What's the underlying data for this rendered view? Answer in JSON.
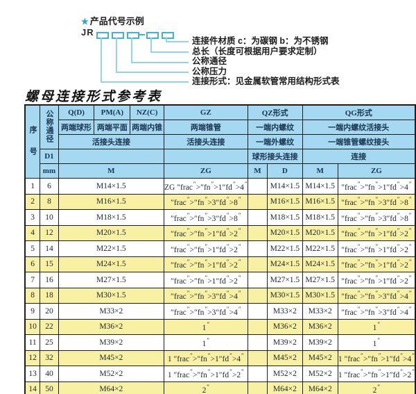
{
  "diagram": {
    "star": "★",
    "title": "产品代号示例",
    "code_prefix": "JR",
    "labels": [
      "连接件材质  c：为碳钢  b：为不锈钢",
      "总长（长度可根据用户要求定制）",
      "公称通径",
      "公称压力",
      "连接形式：见金属软管常用结构形式表"
    ]
  },
  "table": {
    "title": "螺母连接形式参考表",
    "header": {
      "serial": "序号",
      "diameter": "公称通径",
      "d1": "D1",
      "mm": "mm",
      "union_label": "活接头连接",
      "m_label": "M",
      "zg_label": "ZG",
      "groups": [
        {
          "code": "Q(D)",
          "desc": "两端球形"
        },
        {
          "code": "PM(A)",
          "desc": "两端平面"
        },
        {
          "code": "NZ(C)",
          "desc": "两端内锥"
        },
        {
          "code": "GZ",
          "desc": "两端锥管",
          "desc2": "活接头连接"
        },
        {
          "code": "QZ形式",
          "desc": "一端内螺纹",
          "desc2": "一端外螺纹",
          "desc3": "球形接头连接",
          "sub": [
            "M",
            "D"
          ]
        },
        {
          "code": "QG形式",
          "desc": "一端内螺纹活接头",
          "desc2": "一端锥管螺纹接头",
          "desc3": "连接",
          "sub": [
            "M",
            "ZG"
          ]
        }
      ]
    },
    "rows": [
      {
        "no": "1",
        "dn": "6",
        "m": "M14×1.5",
        "gz": "ZG 1/4\"",
        "qz_m": "",
        "qz_d": "M14×1.5",
        "qg_m": "M14×1.5",
        "qg_zg": "1/4\""
      },
      {
        "no": "2",
        "dn": "8",
        "m": "M16×1.5",
        "gz": "3/8\"",
        "qz_m": "",
        "qz_d": "M16×1.5",
        "qg_m": "M16×1.5",
        "qg_zg": "3/8\""
      },
      {
        "no": "3",
        "dn": "10",
        "m": "M18×1.5",
        "gz": "3/8\"",
        "qz_m": "",
        "qz_d": "M18×1.5",
        "qg_m": "M18×1.5",
        "qg_zg": "3/8\""
      },
      {
        "no": "4",
        "dn": "12",
        "m": "M20×1.5",
        "gz": "1/2\"",
        "qz_m": "",
        "qz_d": "M20×1.5",
        "qg_m": "M20×1.5",
        "qg_zg": "1/2\""
      },
      {
        "no": "5",
        "dn": "14",
        "m": "M22×1.5",
        "gz": "1/2\"",
        "qz_m": "",
        "qz_d": "M22×1.5",
        "qg_m": "M22×1.5",
        "qg_zg": "1/2\""
      },
      {
        "no": "6",
        "dn": "15",
        "m": "M24×1.5",
        "gz": "1/2\"",
        "qz_m": "",
        "qz_d": "M24×1.5",
        "qg_m": "M24×1.5",
        "qg_zg": "1/2\""
      },
      {
        "no": "7",
        "dn": "16",
        "m": "M27×1.5",
        "gz": "1/2\"",
        "qz_m": "",
        "qz_d": "M27×1.5",
        "qg_m": "M27×1.5",
        "qg_zg": "1/2\""
      },
      {
        "no": "8",
        "dn": "18",
        "m": "M30×1.5",
        "gz": "3/4\"",
        "qz_m": "",
        "qz_d": "M30×1.5",
        "qg_m": "M30×1.5",
        "qg_zg": "3/4\""
      },
      {
        "no": "9",
        "dn": "20",
        "m": "M33×2",
        "gz": "3/4\"",
        "qz_m": "",
        "qz_d": "M33×2",
        "qg_m": "M33×2",
        "qg_zg": "3/4\""
      },
      {
        "no": "10",
        "dn": "22",
        "m": "M36×2",
        "gz": "1\"",
        "qz_m": "",
        "qz_d": "M36×2",
        "qg_m": "M36×2",
        "qg_zg": "1\""
      },
      {
        "no": "11",
        "dn": "25",
        "m": "M39×2",
        "gz": "1\"",
        "qz_m": "",
        "qz_d": "M39×2",
        "qg_m": "M39×2",
        "qg_zg": "1\""
      },
      {
        "no": "12",
        "dn": "32",
        "m": "M45×2",
        "gz": "1 1/4\"",
        "qz_m": "",
        "qz_d": "M45×2",
        "qg_m": "M45×2",
        "qg_zg": "1 1/4\""
      },
      {
        "no": "13",
        "dn": "40",
        "m": "M52×2",
        "gz": "1 1/2\"",
        "qz_m": "",
        "qz_d": "M52×2",
        "qg_m": "M52×2",
        "qg_zg": "1 1/2\""
      },
      {
        "no": "14",
        "dn": "50",
        "m": "M64×2",
        "gz": "2\"",
        "qz_m": "",
        "qz_d": "M64×2",
        "qg_m": "M64×2",
        "qg_zg": "2\""
      }
    ]
  },
  "colors": {
    "header_bg": "#a5d8f1",
    "row_alt_bg": "#f8f1a3",
    "cyan": "#3eb3d6",
    "line_cyan": "#8fd6ea",
    "star_blue": "#29a3d0"
  }
}
